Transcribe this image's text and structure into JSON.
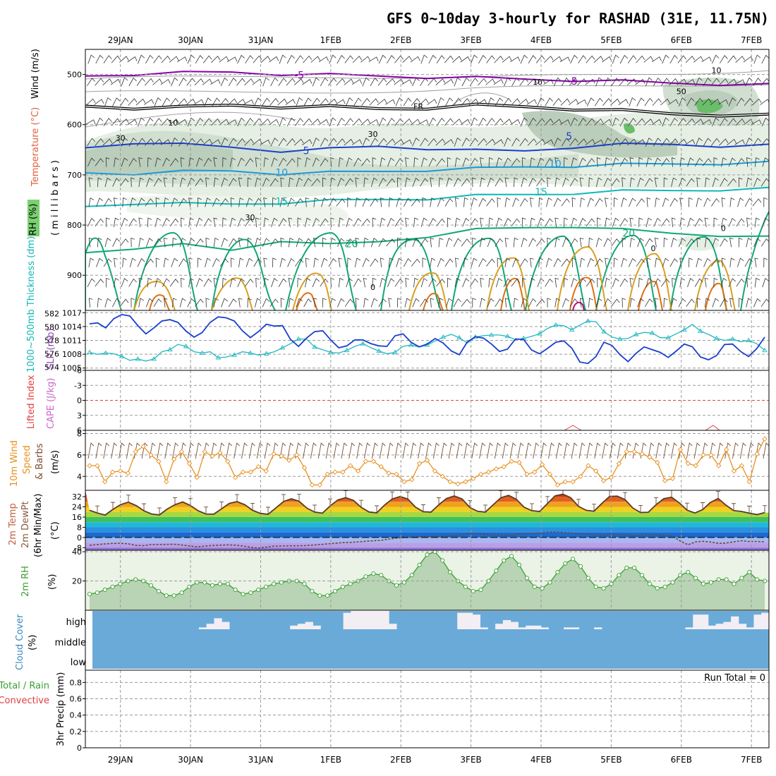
{
  "title": "GFS 0~10day 3-hourly for RASHAD (31E, 11.75N)",
  "dates": [
    "29JAN",
    "30JAN",
    "31JAN",
    "1FEB",
    "2FEB",
    "3FEB",
    "4FEB",
    "5FEB",
    "6FEB",
    "7FEB"
  ],
  "colors": {
    "freezing": "#000000",
    "tneg5": "#8800aa",
    "t5": "#1a3fcc",
    "t10": "#1a9ad8",
    "t15": "#10b8b8",
    "t20": "#10a878",
    "t25": "#d8a020",
    "t30": "#e07010",
    "rh": "#6e8c6e",
    "slp": "#1a3fcc",
    "thick": "#20b8c0",
    "wind10": "#e89020",
    "barb10": "#7a5030",
    "cloud": "#6aaad8",
    "rh2m": "#3aa030"
  },
  "chart_data": [
    {
      "type": "heatmap",
      "name": "upper-air cross-section",
      "ylabel_wind": "Wind (m/s)",
      "ylabel_temp": "Temperature (°C)",
      "ylabel_rh": "RH (%)",
      "ylabel_p": "( m i l l i b a r s )",
      "y_ticks": [
        "500",
        "600",
        "700",
        "800",
        "900"
      ],
      "y_tick_values": [
        500,
        600,
        700,
        800,
        900
      ],
      "ylim": [
        970,
        450
      ],
      "contour_labels": [
        {
          "text": "-5",
          "day": 3.55,
          "p": 501
        },
        {
          "text": "-5",
          "day": 7.45,
          "p": 513
        },
        {
          "text": "FR",
          "day": 5.25,
          "p": 562
        },
        {
          "text": "5",
          "day": 3.65,
          "p": 652
        },
        {
          "text": "5",
          "day": 7.4,
          "p": 623
        },
        {
          "text": "10",
          "day": 3.3,
          "p": 695
        },
        {
          "text": "10",
          "day": 7.2,
          "p": 678
        },
        {
          "text": "15",
          "day": 3.3,
          "p": 753
        },
        {
          "text": "15",
          "day": 7.0,
          "p": 734
        },
        {
          "text": "20",
          "day": 4.3,
          "p": 837
        },
        {
          "text": "20",
          "day": 8.25,
          "p": 816
        },
        {
          "text": "0",
          "day": 8.6,
          "p": 845
        },
        {
          "text": "10",
          "day": 6.95,
          "p": 513
        },
        {
          "text": "10",
          "day": 9.5,
          "p": 490
        },
        {
          "text": "50",
          "day": 9.0,
          "p": 532
        },
        {
          "text": "30",
          "day": 1.0,
          "p": 625
        },
        {
          "text": "10",
          "day": 1.75,
          "p": 595
        },
        {
          "text": "30",
          "day": 4.6,
          "p": 617
        },
        {
          "text": "30",
          "day": 2.85,
          "p": 783
        },
        {
          "text": "0",
          "day": 9.6,
          "p": 805
        },
        {
          "text": "0",
          "day": 4.6,
          "p": 922
        }
      ],
      "isotherms": [
        {
          "label": "-5",
          "p": [
            503,
            499,
            497,
            495,
            499,
            501,
            503,
            505,
            507,
            509,
            511,
            514,
            517,
            519,
            521
          ]
        },
        {
          "label": "FR",
          "p": [
            563,
            566,
            566,
            561,
            564,
            565,
            568,
            566,
            562,
            564,
            568,
            573,
            578,
            580,
            582
          ]
        },
        {
          "label": "5",
          "p": [
            646,
            635,
            640,
            645,
            652,
            649,
            643,
            647,
            652,
            652,
            644,
            640,
            639,
            642,
            642
          ]
        },
        {
          "label": "10",
          "p": [
            696,
            697,
            694,
            692,
            697,
            696,
            693,
            690,
            688,
            684,
            682,
            680,
            678,
            677,
            676
          ]
        },
        {
          "label": "15",
          "p": [
            763,
            756,
            758,
            758,
            755,
            752,
            749,
            747,
            742,
            739,
            736,
            733,
            731,
            729,
            728
          ]
        },
        {
          "label": "20",
          "p": [
            855,
            845,
            840,
            850,
            830,
            840,
            833,
            822,
            810,
            805,
            802,
            810,
            816,
            820,
            825
          ]
        }
      ]
    },
    {
      "type": "line",
      "name": "SLP and thickness",
      "ylabel_left": "1000~500mb Thickness (dm)",
      "ylabel_right": "SLP (mb)",
      "thickness_ticks": [
        574,
        576,
        578,
        580,
        582
      ],
      "slp_ticks": [
        1005,
        1008,
        1011,
        1014,
        1017
      ],
      "slp_lim": [
        1004.5,
        1017.5
      ],
      "thickness_lim": [
        573.5,
        582.5
      ],
      "slp": [
        1014.6,
        1014.8,
        1013.7,
        1015.7,
        1016.6,
        1016.3,
        1014.2,
        1012.4,
        1013.7,
        1015.2,
        1015.5,
        1014.9,
        1013.0,
        1011.7,
        1012.7,
        1014.9,
        1016.1,
        1015.9,
        1015.2,
        1013.1,
        1011.6,
        1012.9,
        1014.5,
        1014.1,
        1014.2,
        1011.2,
        1009.7,
        1011.5,
        1012.9,
        1013.1,
        1011.1,
        1009.4,
        1009.8,
        1011.1,
        1011.1,
        1010.3,
        1009.8,
        1009.7,
        1012.0,
        1012.4,
        1010.6,
        1009.6,
        1010.2,
        1011.4,
        1010.4,
        1008.7,
        1007.9,
        1010.7,
        1011.8,
        1011.5,
        1010.2,
        1008.6,
        1009.1,
        1011.3,
        1011.2,
        1008.9,
        1008.1,
        1009.3,
        1010.6,
        1010.9,
        1009.3,
        1006.3,
        1006.0,
        1007.5,
        1010.6,
        1009.9,
        1007.9,
        1006.4,
        1008.2,
        1009.6,
        1009.0,
        1008.4,
        1007.3,
        1008.7,
        1010.2,
        1009.6,
        1007.4,
        1006.8,
        1007.7,
        1010.1,
        1010.2,
        1008.6,
        1007.5,
        1009.2,
        1011.7
      ],
      "thickness": [
        576.2,
        575.9,
        576.1,
        576.0,
        575.6,
        575.0,
        575.2,
        574.9,
        575.2,
        576.3,
        576.6,
        577.4,
        577.1,
        576.3,
        576.1,
        576.3,
        575.4,
        575.5,
        575.8,
        576.3,
        576.1,
        575.8,
        576.0,
        576.3,
        576.9,
        577.5,
        578.2,
        578.2,
        577.0,
        576.6,
        576.2,
        576.1,
        576.5,
        577.1,
        577.5,
        576.9,
        576.4,
        576.0,
        576.2,
        577.1,
        577.3,
        577.0,
        577.3,
        577.9,
        578.5,
        578.9,
        578.4,
        577.6,
        578.5,
        578.7,
        578.8,
        578.8,
        578.6,
        578.1,
        578.3,
        578.6,
        579.0,
        579.8,
        580.3,
        580.2,
        579.6,
        580.3,
        580.9,
        580.8,
        579.3,
        578.5,
        578.2,
        578.3,
        578.9,
        579.2,
        579.1,
        578.4,
        578.4,
        579.0,
        579.6,
        580.4,
        579.4,
        578.9,
        578.3,
        578.0,
        578.2,
        577.8,
        578.0,
        577.5,
        576.5
      ]
    },
    {
      "type": "line",
      "name": "stability",
      "ylabel_left": "Lifted Index",
      "ylabel_right": "CAPE (J/kg)",
      "y_ticks": [
        "-6",
        "-3",
        "0",
        "3",
        "6"
      ],
      "ylim": [
        6,
        -6
      ],
      "lifted_index_zero": 0
    },
    {
      "type": "line",
      "name": "10m wind",
      "ylabel_left": "10m Wind",
      "ylabel_mid": "Speed",
      "ylabel_right": "& Barbs",
      "yunit": "(m/s)",
      "y_ticks": [
        4,
        6,
        8
      ],
      "ylim": [
        2.7,
        8.3
      ],
      "speed": [
        5.0,
        5.0,
        3.5,
        4.4,
        4.5,
        4.3,
        6.3,
        6.8,
        6.0,
        5.4,
        3.5,
        5.6,
        6.3,
        5.2,
        3.9,
        6.3,
        5.9,
        6.2,
        5.4,
        3.9,
        4.4,
        4.4,
        4.9,
        4.5,
        6.1,
        5.9,
        5.5,
        6.0,
        4.8,
        3.2,
        3.2,
        4.2,
        4.4,
        4.4,
        5.0,
        4.5,
        5.4,
        5.4,
        4.9,
        4.3,
        4.2,
        3.5,
        3.7,
        5.2,
        5.5,
        4.5,
        4.0,
        3.5,
        3.3,
        3.5,
        3.8,
        4.2,
        4.4,
        4.7,
        4.9,
        5.4,
        5.3,
        4.2,
        4.4,
        5.1,
        4.2,
        3.2,
        3.5,
        3.5,
        4.0,
        5.0,
        4.5,
        3.6,
        3.9,
        5.2,
        6.3,
        6.3,
        6.1,
        5.8,
        5.3,
        3.6,
        3.8,
        6.5,
        5.2,
        5.0,
        6.0,
        6.0,
        5.0,
        6.5,
        4.5,
        5.0,
        3.5,
        6.1,
        7.5
      ]
    },
    {
      "type": "area",
      "name": "2m temperature",
      "ylabel_left": "2m Temp",
      "ylabel_mid": "2m DewPt",
      "ylabel_right": "(6hr Min/Max)",
      "yunit": "(°C)",
      "y_ticks": [
        "-8",
        "0",
        "8",
        "16",
        "24",
        "32"
      ],
      "ylim": [
        -10,
        37
      ],
      "temp": [
        21.3,
        19.2,
        17.6,
        22.0,
        25.8,
        27.7,
        25.0,
        20.9,
        18.4,
        17.7,
        22.3,
        25.7,
        27.9,
        25.0,
        20.9,
        18.4,
        18.3,
        22.4,
        26.7,
        28.1,
        25.7,
        21.3,
        18.9,
        18.2,
        23.1,
        28.2,
        30.3,
        28.4,
        23.0,
        19.9,
        19.1,
        24.7,
        29.4,
        31.2,
        29.1,
        23.6,
        20.0,
        19.3,
        25.4,
        30.2,
        32.1,
        30.2,
        23.8,
        20.2,
        19.9,
        25.6,
        30.6,
        32.5,
        30.2,
        23.5,
        20.5,
        19.9,
        25.6,
        31.2,
        33.0,
        29.9,
        23.7,
        21.0,
        20.4,
        26.6,
        32.7,
        33.9,
        31.2,
        24.4,
        21.3,
        20.6,
        26.6,
        32.2,
        32.4,
        29.7,
        23.1,
        19.6,
        19.8,
        25.7,
        30.4,
        31.6,
        27.1,
        21.4,
        19.2,
        21.8,
        27.5,
        30.6,
        25.4,
        21.1,
        20.4,
        19.1,
        18.0,
        19.5
      ],
      "dewpoint": [
        -6.1,
        -5.6,
        -5.0,
        -4.6,
        -4.5,
        -4.9,
        -6.2,
        -6.4,
        -5.6,
        -5.5,
        -5.4,
        -5.3,
        -5.9,
        -6.6,
        -7.3,
        -6.8,
        -6.3,
        -6.0,
        -5.8,
        -6.0,
        -6.7,
        -7.7,
        -8.3,
        -7.5,
        -6.8,
        -6.6,
        -6.5,
        -6.5,
        -6.4,
        -6.0,
        -5.6,
        -5.0,
        -4.5,
        -4.0,
        -3.8,
        -3.5,
        -3.0,
        -2.6,
        -2.2,
        -1.3,
        -0.5,
        0.0,
        0.2,
        0.6,
        0.8,
        0.9,
        1.0,
        1.1,
        1.6,
        2.6,
        3.1,
        2.9,
        2.2,
        1.7,
        1.5,
        1.7,
        2.6,
        3.1,
        3.2,
        3.7,
        4.2,
        4.2,
        3.8,
        3.2,
        2.9,
        2.5,
        2.0,
        1.7,
        1.9,
        2.2,
        1.9,
        1.3,
        1.7,
        2.1,
        2.0,
        1.6,
        1.0,
        -2.8,
        -5.7,
        -3.4,
        -3.0,
        -3.6,
        -4.6,
        -4.3,
        -3.3,
        -2.6,
        -3.2,
        -3.1,
        -3.4
      ]
    },
    {
      "type": "area",
      "name": "2m relative humidity",
      "ylabel": "2m RH",
      "yunit": "(%)",
      "y_ticks": [
        20,
        40
      ],
      "ylim": [
        0,
        41
      ],
      "rh": [
        11,
        12,
        14,
        16,
        18,
        20,
        21,
        20,
        17,
        13,
        10,
        10,
        12,
        16,
        19,
        19,
        17,
        18,
        18,
        14,
        11,
        12,
        14,
        16,
        18,
        19,
        20,
        20,
        18,
        13,
        10,
        10,
        13,
        16,
        18,
        20,
        23,
        25,
        24,
        20,
        17,
        19,
        24,
        31,
        38,
        40,
        34,
        26,
        20,
        16,
        13,
        14,
        20,
        27,
        34,
        37,
        31,
        22,
        16,
        15,
        19,
        26,
        32,
        35,
        30,
        22,
        16,
        15,
        18,
        24,
        29,
        29,
        24,
        18,
        15,
        16,
        19,
        24,
        26,
        22,
        18,
        19,
        21,
        21,
        18,
        22,
        26,
        21,
        20
      ]
    },
    {
      "type": "heatmap",
      "name": "cloud cover",
      "ylabel": "Cloud Cover",
      "yunit": "(%)",
      "levels": [
        "high",
        "middle",
        "low"
      ],
      "high_coverage": [
        0,
        0,
        0,
        0,
        0,
        0,
        0,
        0,
        0,
        0,
        0,
        0,
        0,
        0,
        0.1,
        0.3,
        0.6,
        0.4,
        0,
        0,
        0,
        0,
        0,
        0,
        0,
        0,
        0.2,
        0.3,
        0.4,
        0.2,
        0,
        0,
        0,
        0.9,
        1.0,
        1.0,
        1.0,
        1.0,
        1.0,
        0.3,
        0,
        0,
        0,
        0,
        0,
        0,
        0,
        0,
        0.9,
        0.9,
        0.8,
        0.1,
        0,
        0.3,
        0.5,
        0.4,
        0.1,
        0.2,
        0.2,
        0.1,
        0,
        0,
        0.1,
        0.1,
        0,
        0,
        0.1,
        0,
        0,
        0,
        0,
        0,
        0,
        0,
        0,
        0,
        0,
        0,
        0.1,
        0.8,
        0.8,
        0.2,
        0.3,
        0.4,
        0.7,
        0.3,
        0.1,
        0.8,
        0.9
      ]
    },
    {
      "type": "bar",
      "name": "3hr precipitation",
      "ylabel_left": "Total / Rain",
      "ylabel_mid": "Convective",
      "ylabel_right": "3hr Precip (mm)",
      "y_ticks": [
        "0",
        "0.2",
        "0.4",
        "0.6",
        "0.8"
      ],
      "ylim": [
        0,
        0.95
      ],
      "run_total": "Run Total = 0",
      "values": []
    }
  ]
}
